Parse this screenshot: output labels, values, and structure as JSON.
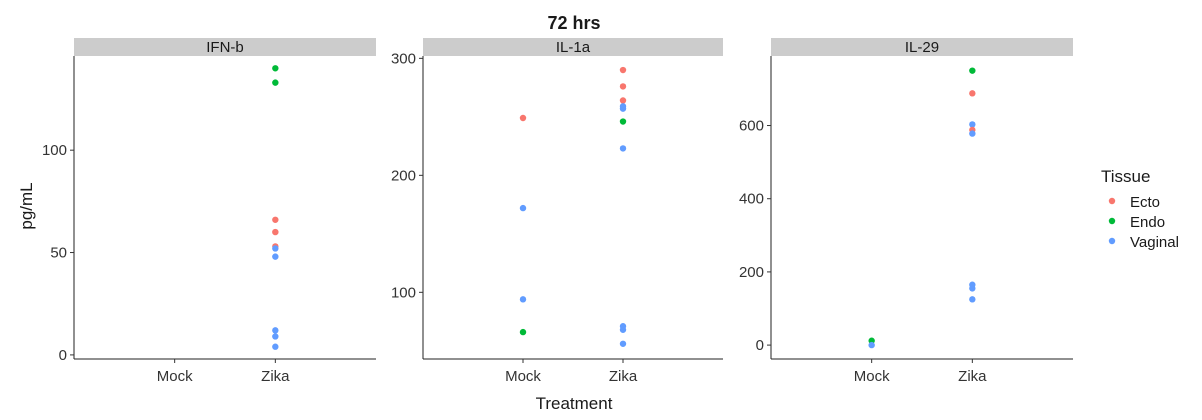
{
  "chart_data": {
    "type": "scatter",
    "title": "72 hrs",
    "xlabel": "Treatment",
    "ylabel": "pg/mL",
    "categories": [
      "Mock",
      "Zika"
    ],
    "legend": {
      "title": "Tissue",
      "placement": "right",
      "entries": [
        {
          "name": "Ecto",
          "color": "#F8766D"
        },
        {
          "name": "Endo",
          "color": "#00BA38"
        },
        {
          "name": "Vaginal",
          "color": "#619CFF"
        }
      ]
    },
    "grid": false,
    "panels": [
      {
        "name": "IFN-b",
        "ylim": [
          -2,
          146
        ],
        "yticks": [
          0,
          50,
          100
        ],
        "points": [
          {
            "x": "Zika",
            "y": 140,
            "tissue": "Endo"
          },
          {
            "x": "Zika",
            "y": 133,
            "tissue": "Endo"
          },
          {
            "x": "Zika",
            "y": 66,
            "tissue": "Ecto"
          },
          {
            "x": "Zika",
            "y": 60,
            "tissue": "Ecto"
          },
          {
            "x": "Zika",
            "y": 53,
            "tissue": "Ecto"
          },
          {
            "x": "Zika",
            "y": 52,
            "tissue": "Vaginal"
          },
          {
            "x": "Zika",
            "y": 48,
            "tissue": "Vaginal"
          },
          {
            "x": "Zika",
            "y": 12,
            "tissue": "Vaginal"
          },
          {
            "x": "Zika",
            "y": 9,
            "tissue": "Vaginal"
          },
          {
            "x": "Zika",
            "y": 4,
            "tissue": "Vaginal"
          }
        ]
      },
      {
        "name": "IL-1a",
        "ylim": [
          43,
          302
        ],
        "yticks": [
          100,
          200,
          300
        ],
        "points": [
          {
            "x": "Mock",
            "y": 249,
            "tissue": "Ecto"
          },
          {
            "x": "Mock",
            "y": 172,
            "tissue": "Vaginal"
          },
          {
            "x": "Mock",
            "y": 94,
            "tissue": "Vaginal"
          },
          {
            "x": "Mock",
            "y": 66,
            "tissue": "Endo"
          },
          {
            "x": "Zika",
            "y": 290,
            "tissue": "Ecto"
          },
          {
            "x": "Zika",
            "y": 276,
            "tissue": "Ecto"
          },
          {
            "x": "Zika",
            "y": 264,
            "tissue": "Ecto"
          },
          {
            "x": "Zika",
            "y": 259,
            "tissue": "Vaginal"
          },
          {
            "x": "Zika",
            "y": 257,
            "tissue": "Vaginal"
          },
          {
            "x": "Zika",
            "y": 246,
            "tissue": "Endo"
          },
          {
            "x": "Zika",
            "y": 223,
            "tissue": "Vaginal"
          },
          {
            "x": "Zika",
            "y": 71,
            "tissue": "Vaginal"
          },
          {
            "x": "Zika",
            "y": 68,
            "tissue": "Vaginal"
          },
          {
            "x": "Zika",
            "y": 56,
            "tissue": "Vaginal"
          }
        ]
      },
      {
        "name": "IL-29",
        "ylim": [
          -38,
          790
        ],
        "yticks": [
          0,
          200,
          400,
          600
        ],
        "points": [
          {
            "x": "Mock",
            "y": 12,
            "tissue": "Endo"
          },
          {
            "x": "Mock",
            "y": 0,
            "tissue": "Vaginal"
          },
          {
            "x": "Zika",
            "y": 750,
            "tissue": "Endo"
          },
          {
            "x": "Zika",
            "y": 688,
            "tissue": "Ecto"
          },
          {
            "x": "Zika",
            "y": 603,
            "tissue": "Vaginal"
          },
          {
            "x": "Zika",
            "y": 588,
            "tissue": "Ecto"
          },
          {
            "x": "Zika",
            "y": 578,
            "tissue": "Vaginal"
          },
          {
            "x": "Zika",
            "y": 165,
            "tissue": "Vaginal"
          },
          {
            "x": "Zika",
            "y": 155,
            "tissue": "Vaginal"
          },
          {
            "x": "Zika",
            "y": 125,
            "tissue": "Vaginal"
          }
        ]
      }
    ]
  }
}
